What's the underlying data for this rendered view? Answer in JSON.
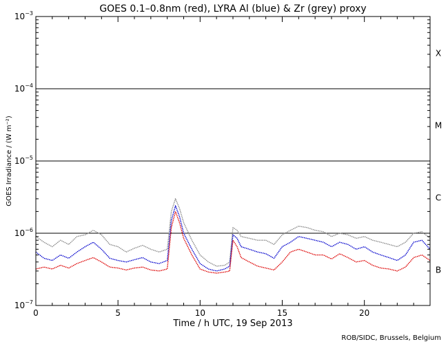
{
  "chart_data": {
    "type": "line",
    "title": "GOES 0.1–0.8nm (red), LYRA Al (blue) & Zr (grey) proxy",
    "xlabel": "Time / h UTC, 19 Sep 2013",
    "ylabel": "GOES Irradiance / (W m⁻²)",
    "credit": "ROB/SIDC, Brussels, Belgium",
    "xlim": [
      0,
      24
    ],
    "ylim": [
      1e-07,
      0.001
    ],
    "yscale": "log",
    "x_ticks": [
      0,
      5,
      10,
      15,
      20
    ],
    "x_tick_labels": [
      "0",
      "5",
      "10",
      "15",
      "20"
    ],
    "y_ticks": [
      1e-07,
      1e-06,
      1e-05,
      0.0001,
      0.001
    ],
    "y_tick_labels": [
      {
        "base": "10",
        "exp": "−7"
      },
      {
        "base": "10",
        "exp": "−6"
      },
      {
        "base": "10",
        "exp": "−5"
      },
      {
        "base": "10",
        "exp": "−4"
      },
      {
        "base": "10",
        "exp": "−3"
      }
    ],
    "flare_class_lines": [
      1e-06,
      1e-05,
      0.0001
    ],
    "flare_classes": [
      {
        "label": "X",
        "y": 0.000316
      },
      {
        "label": "M",
        "y": 3.16e-05
      },
      {
        "label": "C",
        "y": 3.16e-06
      },
      {
        "label": "B",
        "y": 3.16e-07
      }
    ],
    "series": [
      {
        "color": "#888888",
        "x": [
          0.0,
          0.5,
          1.0,
          1.5,
          2.0,
          2.5,
          3.0,
          3.5,
          4.0,
          4.5,
          5.0,
          5.5,
          6.0,
          6.5,
          7.0,
          7.5,
          8.0,
          8.25,
          8.5,
          8.75,
          9.0,
          9.5,
          10.0,
          10.5,
          11.0,
          11.5,
          11.8,
          12.0,
          12.25,
          12.5,
          13.0,
          13.5,
          14.0,
          14.5,
          15.0,
          15.5,
          16.0,
          16.5,
          17.0,
          17.5,
          18.0,
          18.5,
          19.0,
          19.5,
          20.0,
          20.5,
          21.0,
          21.5,
          22.0,
          22.5,
          23.0,
          23.5,
          24.0
        ],
        "values": [
          9e-07,
          7.5e-07,
          6.5e-07,
          8e-07,
          7e-07,
          9e-07,
          9.5e-07,
          1.1e-06,
          9.5e-07,
          7e-07,
          6.5e-07,
          5.5e-07,
          6.2e-07,
          6.8e-07,
          6e-07,
          5.5e-07,
          6e-07,
          2e-06,
          3e-06,
          2.2e-06,
          1.4e-06,
          8e-07,
          5e-07,
          4e-07,
          3.5e-07,
          3.6e-07,
          4e-07,
          1.2e-06,
          1.1e-06,
          9e-07,
          8.5e-07,
          8e-07,
          8e-07,
          7e-07,
          9.5e-07,
          1.1e-06,
          1.25e-06,
          1.2e-06,
          1.1e-06,
          1.05e-06,
          9e-07,
          1e-06,
          9.5e-07,
          8.5e-07,
          9e-07,
          8e-07,
          7.5e-07,
          7e-07,
          6.5e-07,
          7.5e-07,
          1e-06,
          1.05e-06,
          8.5e-07
        ]
      },
      {
        "color": "#0000cc",
        "x": [
          0.0,
          0.5,
          1.0,
          1.5,
          2.0,
          2.5,
          3.0,
          3.5,
          4.0,
          4.5,
          5.0,
          5.5,
          6.0,
          6.5,
          7.0,
          7.5,
          8.0,
          8.25,
          8.5,
          8.75,
          9.0,
          9.5,
          10.0,
          10.5,
          11.0,
          11.5,
          11.8,
          12.0,
          12.25,
          12.5,
          13.0,
          13.5,
          14.0,
          14.5,
          15.0,
          15.5,
          16.0,
          16.5,
          17.0,
          17.5,
          18.0,
          18.5,
          19.0,
          19.5,
          20.0,
          20.5,
          21.0,
          21.5,
          22.0,
          22.5,
          23.0,
          23.5,
          24.0
        ],
        "values": [
          5.5e-07,
          4.5e-07,
          4.2e-07,
          5e-07,
          4.5e-07,
          5.5e-07,
          6.5e-07,
          7.5e-07,
          6e-07,
          4.5e-07,
          4.2e-07,
          4e-07,
          4.3e-07,
          4.6e-07,
          4e-07,
          3.8e-07,
          4.2e-07,
          1.5e-06,
          2.4e-06,
          1.7e-06,
          1e-06,
          6e-07,
          3.8e-07,
          3.2e-07,
          3e-07,
          3.2e-07,
          3.5e-07,
          9.5e-07,
          8.5e-07,
          6.5e-07,
          6e-07,
          5.5e-07,
          5.2e-07,
          4.5e-07,
          6.5e-07,
          7.5e-07,
          9e-07,
          8.5e-07,
          8e-07,
          7.5e-07,
          6.5e-07,
          7.5e-07,
          7e-07,
          6e-07,
          6.5e-07,
          5.5e-07,
          5e-07,
          4.6e-07,
          4.2e-07,
          5e-07,
          7.5e-07,
          8e-07,
          6e-07
        ]
      },
      {
        "color": "#dd0000",
        "x": [
          0.0,
          0.5,
          1.0,
          1.5,
          2.0,
          2.5,
          3.0,
          3.5,
          4.0,
          4.5,
          5.0,
          5.5,
          6.0,
          6.5,
          7.0,
          7.5,
          8.0,
          8.25,
          8.5,
          8.75,
          9.0,
          9.5,
          10.0,
          10.5,
          11.0,
          11.5,
          11.8,
          12.0,
          12.25,
          12.5,
          13.0,
          13.5,
          14.0,
          14.5,
          15.0,
          15.5,
          16.0,
          16.5,
          17.0,
          17.5,
          18.0,
          18.5,
          19.0,
          19.5,
          20.0,
          20.5,
          21.0,
          21.5,
          22.0,
          22.5,
          23.0,
          23.5,
          24.0
        ],
        "values": [
          3.2e-07,
          3.4e-07,
          3.2e-07,
          3.6e-07,
          3.3e-07,
          3.8e-07,
          4.2e-07,
          4.6e-07,
          4e-07,
          3.4e-07,
          3.3e-07,
          3.1e-07,
          3.3e-07,
          3.4e-07,
          3.1e-07,
          3e-07,
          3.2e-07,
          1.2e-06,
          2e-06,
          1.4e-06,
          8.5e-07,
          5e-07,
          3.2e-07,
          2.9e-07,
          2.8e-07,
          2.9e-07,
          3e-07,
          8e-07,
          6.5e-07,
          4.6e-07,
          4e-07,
          3.5e-07,
          3.3e-07,
          3.1e-07,
          4e-07,
          5.5e-07,
          6e-07,
          5.5e-07,
          5e-07,
          5e-07,
          4.4e-07,
          5.2e-07,
          4.6e-07,
          4e-07,
          4.2e-07,
          3.6e-07,
          3.3e-07,
          3.2e-07,
          3e-07,
          3.4e-07,
          4.6e-07,
          5e-07,
          4.2e-07
        ]
      }
    ]
  }
}
